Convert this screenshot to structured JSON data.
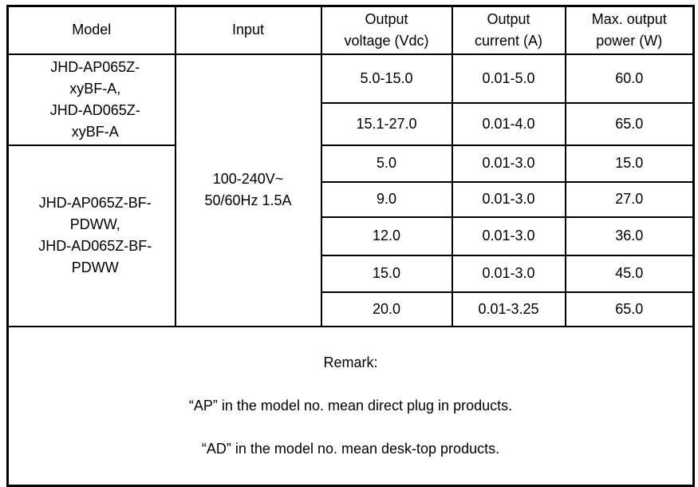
{
  "table": {
    "headers": {
      "model": "Model",
      "input": "Input",
      "output_voltage": "Output\nvoltage (Vdc)",
      "output_current": "Output\ncurrent (A)",
      "max_output_power": "Max. output\npower (W)"
    },
    "model_groups": [
      {
        "text": "JHD-AP065Z-\nxyBF-A,\nJHD-AD065Z-\nxyBF-A"
      },
      {
        "text": "JHD-AP065Z-BF-\nPDWW,\nJHD-AD065Z-BF-\nPDWW"
      }
    ],
    "input_value": "100-240V~\n50/60Hz 1.5A",
    "rows": [
      {
        "voltage": "5.0-15.0",
        "current": "0.01-5.0",
        "power": "60.0"
      },
      {
        "voltage": "15.1-27.0",
        "current": "0.01-4.0",
        "power": "65.0"
      },
      {
        "voltage": "5.0",
        "current": "0.01-3.0",
        "power": "15.0"
      },
      {
        "voltage": "9.0",
        "current": "0.01-3.0",
        "power": "27.0"
      },
      {
        "voltage": "12.0",
        "current": "0.01-3.0",
        "power": "36.0"
      },
      {
        "voltage": "15.0",
        "current": "0.01-3.0",
        "power": "45.0"
      },
      {
        "voltage": "20.0",
        "current": "0.01-3.25",
        "power": "65.0"
      }
    ],
    "remark": {
      "label": "Remark:",
      "lines": [
        "“AP” in the model no. mean direct plug in products.",
        "“AD” in the model no. mean desk-top products."
      ]
    }
  },
  "colors": {
    "border": "#000000",
    "text": "#000000",
    "background": "#ffffff"
  }
}
